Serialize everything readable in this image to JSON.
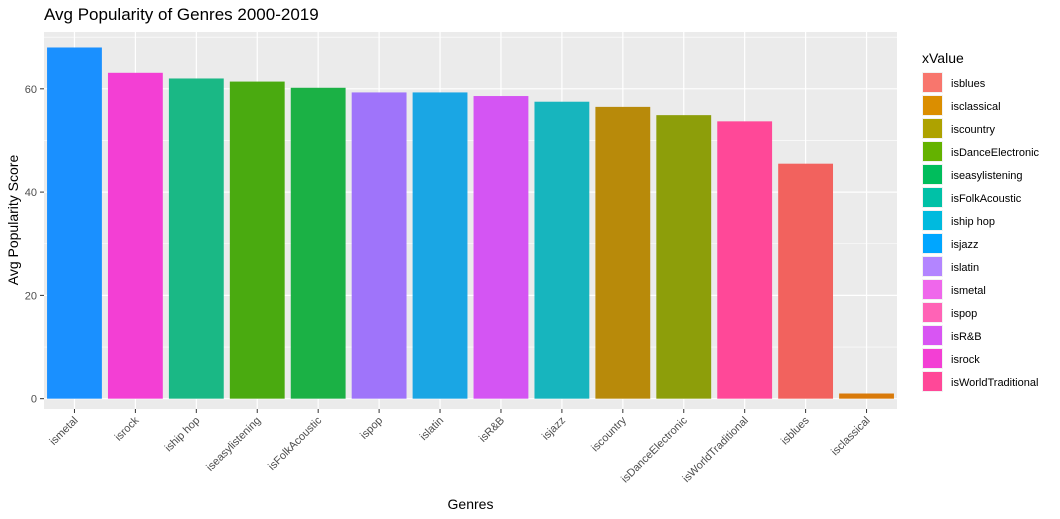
{
  "chart_data": {
    "type": "bar",
    "title": "Avg Popularity of Genres 2000-2019",
    "xlabel": "Genres",
    "ylabel": "Avg Popularity Score",
    "ylim": [
      0,
      71
    ],
    "yticks": [
      0,
      20,
      40,
      60
    ],
    "grid": true,
    "legend_title": "xValue",
    "legend_position": "right",
    "categories": [
      "ismetal",
      "isrock",
      "iship hop",
      "iseasylistening",
      "isFolkAcoustic",
      "ispop",
      "islatin",
      "isR&B",
      "isjazz",
      "iscountry",
      "isDanceElectronic",
      "isWorldTraditional",
      "isblues",
      "isclassical"
    ],
    "values": [
      68.0,
      63.1,
      62.0,
      61.4,
      60.2,
      59.3,
      59.3,
      58.6,
      57.5,
      56.5,
      54.9,
      53.7,
      45.5,
      1.0
    ],
    "bar_colors": [
      "#1A90FF",
      "#F33FD4",
      "#1AB885",
      "#4AAA10",
      "#1BB145",
      "#9F74FA",
      "#1AA6E4",
      "#D455F3",
      "#17B5BE",
      "#B88A0A",
      "#8D9E0A",
      "#FF4898",
      "#F2625E",
      "#D97A0A"
    ],
    "legend": [
      {
        "label": "isblues",
        "color": "#F8766D"
      },
      {
        "label": "isclassical",
        "color": "#DB8E00"
      },
      {
        "label": "iscountry",
        "color": "#AEA200"
      },
      {
        "label": "isDanceElectronic",
        "color": "#64B200"
      },
      {
        "label": "iseasylistening",
        "color": "#00BD5C"
      },
      {
        "label": "isFolkAcoustic",
        "color": "#00C1A7"
      },
      {
        "label": "iship hop",
        "color": "#00BADE"
      },
      {
        "label": "isjazz",
        "color": "#00A6FF"
      },
      {
        "label": "islatin",
        "color": "#B385FF"
      },
      {
        "label": "ismetal",
        "color": "#EF67EB"
      },
      {
        "label": "ispop",
        "color": "#FF63B6"
      },
      {
        "label": "isR&B",
        "color": "#D855F3"
      },
      {
        "label": "isrock",
        "color": "#F33FD4"
      },
      {
        "label": "isWorldTraditional",
        "color": "#FF4898"
      }
    ]
  }
}
